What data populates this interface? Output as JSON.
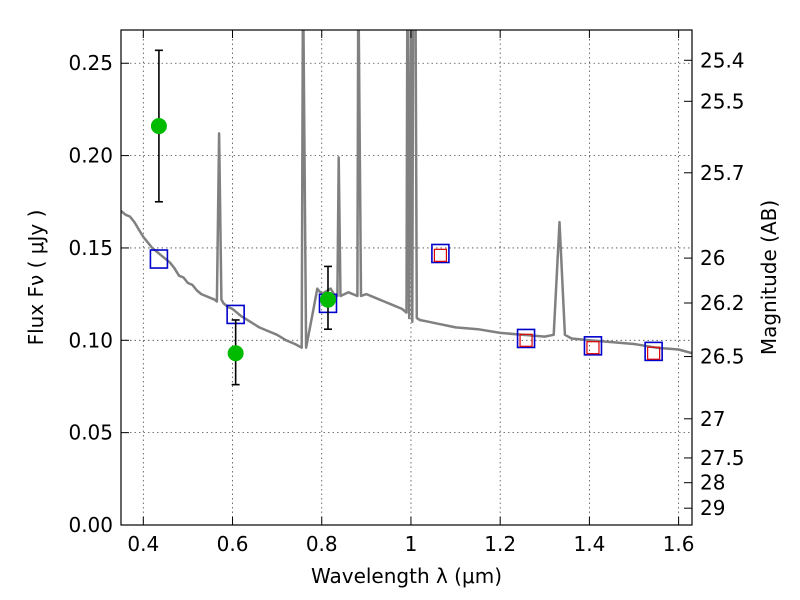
{
  "chart_data": {
    "type": "scatter",
    "title": "",
    "xlabel": "Wavelength  λ (μm)",
    "ylabel": "Flux  Fν  ( μJy )",
    "ylabel_right": "Magnitude (AB)",
    "xlim": [
      0.35,
      1.63
    ],
    "ylim": [
      0.0,
      0.268
    ],
    "grid": true,
    "x_ticks": [
      0.4,
      0.6,
      0.8,
      1.0,
      1.2,
      1.4,
      1.6
    ],
    "x_tick_labels": [
      "0.4",
      "0.6",
      "0.8",
      "1",
      "1.2",
      "1.4",
      "1.6"
    ],
    "y_ticks": [
      0.0,
      0.05,
      0.1,
      0.15,
      0.2,
      0.25
    ],
    "y_tick_labels": [
      "0.00",
      "0.05",
      "0.10",
      "0.15",
      "0.20",
      "0.25"
    ],
    "right_ticks": [
      {
        "label": "25.4",
        "flux": 0.2516
      },
      {
        "label": "25.5",
        "flux": 0.2294
      },
      {
        "label": "25.7",
        "flux": 0.1907
      },
      {
        "label": "26",
        "flux": 0.1445
      },
      {
        "label": "26.2",
        "flux": 0.1202
      },
      {
        "label": "26.5",
        "flux": 0.0912
      },
      {
        "label": "27",
        "flux": 0.0575
      },
      {
        "label": "27.5",
        "flux": 0.0363
      },
      {
        "label": "28",
        "flux": 0.0229
      },
      {
        "label": "29",
        "flux": 0.0091
      }
    ],
    "series": [
      {
        "kind": "line",
        "color": "#808080",
        "points": [
          [
            0.35,
            0.17
          ],
          [
            0.36,
            0.168
          ],
          [
            0.37,
            0.167
          ],
          [
            0.38,
            0.164
          ],
          [
            0.39,
            0.16
          ],
          [
            0.4,
            0.156
          ],
          [
            0.41,
            0.153
          ],
          [
            0.42,
            0.15
          ],
          [
            0.43,
            0.148
          ],
          [
            0.44,
            0.146
          ],
          [
            0.45,
            0.144
          ],
          [
            0.46,
            0.142
          ],
          [
            0.47,
            0.139
          ],
          [
            0.48,
            0.135
          ],
          [
            0.49,
            0.134
          ],
          [
            0.5,
            0.131
          ],
          [
            0.51,
            0.13
          ],
          [
            0.52,
            0.127
          ],
          [
            0.53,
            0.125
          ],
          [
            0.54,
            0.124
          ],
          [
            0.55,
            0.123
          ],
          [
            0.56,
            0.122
          ],
          [
            0.565,
            0.121
          ],
          [
            0.57,
            0.212
          ],
          [
            0.575,
            0.122
          ],
          [
            0.58,
            0.12
          ],
          [
            0.59,
            0.118
          ],
          [
            0.6,
            0.117
          ],
          [
            0.62,
            0.113
          ],
          [
            0.64,
            0.11
          ],
          [
            0.66,
            0.107
          ],
          [
            0.68,
            0.105
          ],
          [
            0.7,
            0.103
          ],
          [
            0.72,
            0.1
          ],
          [
            0.74,
            0.098
          ],
          [
            0.755,
            0.096
          ],
          [
            0.758,
            0.3
          ],
          [
            0.765,
            0.096
          ],
          [
            0.78,
            0.115
          ],
          [
            0.79,
            0.128
          ],
          [
            0.8,
            0.125
          ],
          [
            0.82,
            0.128
          ],
          [
            0.83,
            0.124
          ],
          [
            0.835,
            0.124
          ],
          [
            0.838,
            0.199
          ],
          [
            0.842,
            0.124
          ],
          [
            0.86,
            0.126
          ],
          [
            0.88,
            0.124
          ],
          [
            0.882,
            0.3
          ],
          [
            0.888,
            0.124
          ],
          [
            0.9,
            0.125
          ],
          [
            0.92,
            0.123
          ],
          [
            0.94,
            0.121
          ],
          [
            0.96,
            0.119
          ],
          [
            0.98,
            0.117
          ],
          [
            0.99,
            0.115
          ],
          [
            0.992,
            0.3
          ],
          [
            0.996,
            0.112
          ],
          [
            1.0,
            0.3
          ],
          [
            1.003,
            0.11
          ],
          [
            1.005,
            0.3
          ],
          [
            1.01,
            0.3
          ],
          [
            1.013,
            0.112
          ],
          [
            1.02,
            0.111
          ],
          [
            1.04,
            0.11
          ],
          [
            1.06,
            0.109
          ],
          [
            1.08,
            0.108
          ],
          [
            1.1,
            0.107
          ],
          [
            1.15,
            0.106
          ],
          [
            1.2,
            0.104
          ],
          [
            1.25,
            0.103
          ],
          [
            1.3,
            0.102
          ],
          [
            1.32,
            0.103
          ],
          [
            1.333,
            0.164
          ],
          [
            1.345,
            0.103
          ],
          [
            1.36,
            0.101
          ],
          [
            1.4,
            0.1
          ],
          [
            1.45,
            0.099
          ],
          [
            1.5,
            0.098
          ],
          [
            1.55,
            0.096
          ],
          [
            1.6,
            0.095
          ],
          [
            1.63,
            0.093
          ]
        ]
      },
      {
        "kind": "errorbar",
        "color": "#00bb00",
        "points": [
          {
            "x": 0.435,
            "y": 0.216,
            "ylo": 0.175,
            "yhi": 0.257
          },
          {
            "x": 0.607,
            "y": 0.093,
            "ylo": 0.076,
            "yhi": 0.111
          },
          {
            "x": 0.814,
            "y": 0.122,
            "ylo": 0.106,
            "yhi": 0.14
          }
        ]
      },
      {
        "kind": "model_blue_squares",
        "color": "#0000cc",
        "points": [
          [
            0.435,
            0.144
          ],
          [
            0.607,
            0.114
          ],
          [
            0.814,
            0.12
          ],
          [
            1.066,
            0.147
          ],
          [
            1.258,
            0.101
          ],
          [
            1.408,
            0.097
          ],
          [
            1.544,
            0.094
          ]
        ]
      },
      {
        "kind": "model_red_squares",
        "color": "#dd0000",
        "points": [
          [
            1.066,
            0.146
          ],
          [
            1.258,
            0.1
          ],
          [
            1.408,
            0.096
          ],
          [
            1.544,
            0.093
          ]
        ]
      }
    ]
  }
}
